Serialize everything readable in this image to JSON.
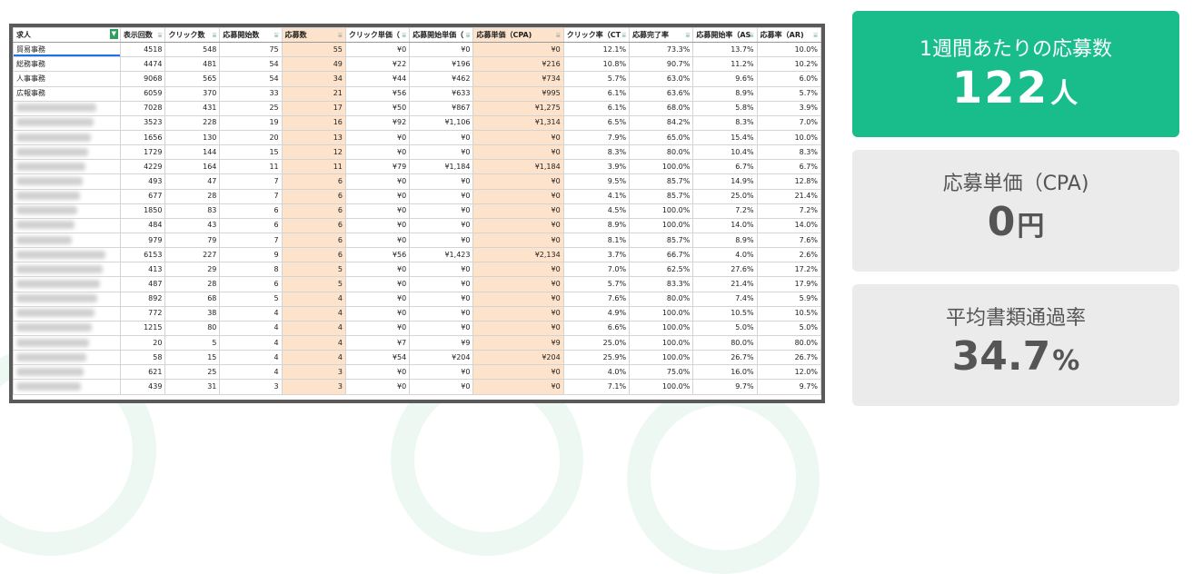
{
  "spreadsheet": {
    "headers": [
      "求人",
      "表示回数",
      "クリック数",
      "応募開始数",
      "応募数",
      "クリック単価（",
      "応募開始単価（",
      "応募単価（CPA)",
      "クリック率（CT",
      "応募完了率",
      "応募開始率（AS",
      "応募率（AR)"
    ],
    "rows": [
      [
        "貿易事務",
        "4518",
        "548",
        "75",
        "55",
        "¥0",
        "¥0",
        "¥0",
        "12.1%",
        "73.3%",
        "13.7%",
        "10.0%"
      ],
      [
        "総務事務",
        "4474",
        "481",
        "54",
        "49",
        "¥22",
        "¥196",
        "¥216",
        "10.8%",
        "90.7%",
        "11.2%",
        "10.2%"
      ],
      [
        "人事事務",
        "9068",
        "565",
        "54",
        "34",
        "¥44",
        "¥462",
        "¥734",
        "5.7%",
        "63.0%",
        "9.6%",
        "6.0%"
      ],
      [
        "広報事務",
        "6059",
        "370",
        "33",
        "21",
        "¥56",
        "¥633",
        "¥995",
        "6.1%",
        "63.6%",
        "8.9%",
        "5.7%"
      ],
      [
        "",
        "7028",
        "431",
        "25",
        "17",
        "¥50",
        "¥867",
        "¥1,275",
        "6.1%",
        "68.0%",
        "5.8%",
        "3.9%"
      ],
      [
        "",
        "3523",
        "228",
        "19",
        "16",
        "¥92",
        "¥1,106",
        "¥1,314",
        "6.5%",
        "84.2%",
        "8.3%",
        "7.0%"
      ],
      [
        "",
        "1656",
        "130",
        "20",
        "13",
        "¥0",
        "¥0",
        "¥0",
        "7.9%",
        "65.0%",
        "15.4%",
        "10.0%"
      ],
      [
        "",
        "1729",
        "144",
        "15",
        "12",
        "¥0",
        "¥0",
        "¥0",
        "8.3%",
        "80.0%",
        "10.4%",
        "8.3%"
      ],
      [
        "",
        "4229",
        "164",
        "11",
        "11",
        "¥79",
        "¥1,184",
        "¥1,184",
        "3.9%",
        "100.0%",
        "6.7%",
        "6.7%"
      ],
      [
        "",
        "493",
        "47",
        "7",
        "6",
        "¥0",
        "¥0",
        "¥0",
        "9.5%",
        "85.7%",
        "14.9%",
        "12.8%"
      ],
      [
        "",
        "677",
        "28",
        "7",
        "6",
        "¥0",
        "¥0",
        "¥0",
        "4.1%",
        "85.7%",
        "25.0%",
        "21.4%"
      ],
      [
        "",
        "1850",
        "83",
        "6",
        "6",
        "¥0",
        "¥0",
        "¥0",
        "4.5%",
        "100.0%",
        "7.2%",
        "7.2%"
      ],
      [
        "",
        "484",
        "43",
        "6",
        "6",
        "¥0",
        "¥0",
        "¥0",
        "8.9%",
        "100.0%",
        "14.0%",
        "14.0%"
      ],
      [
        "",
        "979",
        "79",
        "7",
        "6",
        "¥0",
        "¥0",
        "¥0",
        "8.1%",
        "85.7%",
        "8.9%",
        "7.6%"
      ],
      [
        "",
        "6153",
        "227",
        "9",
        "6",
        "¥56",
        "¥1,423",
        "¥2,134",
        "3.7%",
        "66.7%",
        "4.0%",
        "2.6%"
      ],
      [
        "",
        "413",
        "29",
        "8",
        "5",
        "¥0",
        "¥0",
        "¥0",
        "7.0%",
        "62.5%",
        "27.6%",
        "17.2%"
      ],
      [
        "",
        "487",
        "28",
        "6",
        "5",
        "¥0",
        "¥0",
        "¥0",
        "5.7%",
        "83.3%",
        "21.4%",
        "17.9%"
      ],
      [
        "",
        "892",
        "68",
        "5",
        "4",
        "¥0",
        "¥0",
        "¥0",
        "7.6%",
        "80.0%",
        "7.4%",
        "5.9%"
      ],
      [
        "",
        "772",
        "38",
        "4",
        "4",
        "¥0",
        "¥0",
        "¥0",
        "4.9%",
        "100.0%",
        "10.5%",
        "10.5%"
      ],
      [
        "",
        "1215",
        "80",
        "4",
        "4",
        "¥0",
        "¥0",
        "¥0",
        "6.6%",
        "100.0%",
        "5.0%",
        "5.0%"
      ],
      [
        "",
        "20",
        "5",
        "4",
        "4",
        "¥7",
        "¥9",
        "¥9",
        "25.0%",
        "100.0%",
        "80.0%",
        "80.0%"
      ],
      [
        "",
        "58",
        "15",
        "4",
        "4",
        "¥54",
        "¥204",
        "¥204",
        "25.9%",
        "100.0%",
        "26.7%",
        "26.7%"
      ],
      [
        "",
        "621",
        "25",
        "4",
        "3",
        "¥0",
        "¥0",
        "¥0",
        "4.0%",
        "75.0%",
        "16.0%",
        "12.0%"
      ],
      [
        "",
        "439",
        "31",
        "3",
        "3",
        "¥0",
        "¥0",
        "¥0",
        "7.1%",
        "100.0%",
        "9.7%",
        "9.7%"
      ]
    ],
    "highlight_columns": [
      4,
      7
    ],
    "highlight_color": "#fde3cc",
    "active_filter_column": 0,
    "filter_icon": "filter-icon"
  },
  "kpis": [
    {
      "title": "1週間あたりの応募数",
      "value": "122",
      "unit": "人",
      "bg": "#18bd8b"
    },
    {
      "title": "応募単価（CPA)",
      "value": "0",
      "unit": "円",
      "bg": "#ebebeb"
    },
    {
      "title": "平均書類通過率",
      "value": "34.7",
      "unit": "%",
      "bg": "#ebebeb"
    }
  ]
}
